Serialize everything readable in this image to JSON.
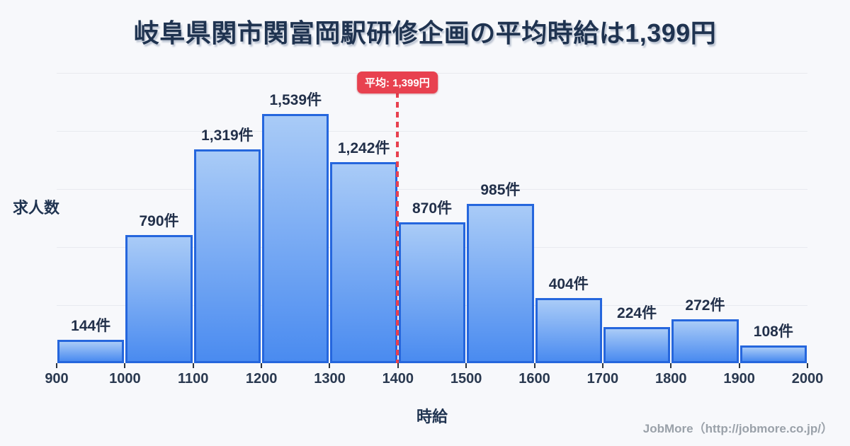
{
  "chart_data": {
    "type": "bar",
    "subtype": "histogram",
    "title": "岐阜県関市関富岡駅研修企画の平均時給は1,399円",
    "xlabel": "時給",
    "ylabel": "求人数",
    "bin_edges": [
      900,
      1000,
      1100,
      1200,
      1300,
      1400,
      1500,
      1600,
      1700,
      1800,
      1900,
      2000
    ],
    "x_tick_labels": [
      "900",
      "1000",
      "1100",
      "1200",
      "1300",
      "1400",
      "1500",
      "1600",
      "1700",
      "1800",
      "1900",
      "2000"
    ],
    "values": [
      144,
      790,
      1319,
      1539,
      1242,
      870,
      985,
      404,
      224,
      272,
      108
    ],
    "bar_labels": [
      "144件",
      "790件",
      "1,319件",
      "1,539件",
      "1,242件",
      "870件",
      "985件",
      "404件",
      "224件",
      "272件",
      "108件"
    ],
    "average": 1399,
    "average_badge_label": "平均: 1,399円",
    "ylim": [
      0,
      1793
    ],
    "gridline_divisions": 5,
    "grid": true,
    "legend": "none",
    "footer_credit": "JobMore（http://jobmore.co.jp/）"
  },
  "colors": {
    "background": "#f7f8fb",
    "title_text": "#1f3350",
    "bar_border": "#2566dd",
    "bar_gradient_top": "#a9cbf7",
    "bar_gradient_bottom": "#4a8bf0",
    "gridline": "#e8eaef",
    "average_red": "#e8414f",
    "tick_text": "#2a3950",
    "footer_text": "#9aa1a9"
  }
}
